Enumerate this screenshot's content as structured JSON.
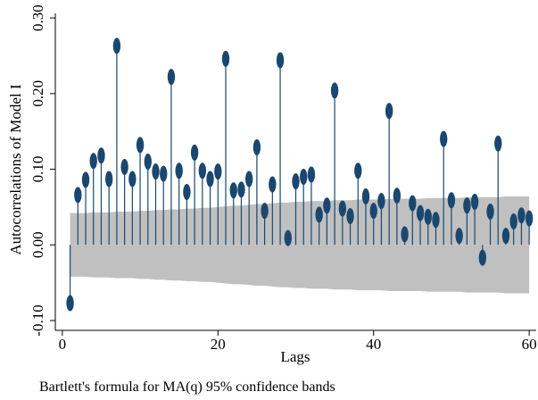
{
  "chart_data": {
    "type": "correlogram",
    "x_label": "Lags",
    "y_label": "Autocorrelations of Model I",
    "note": "Bartlett's formula for MA(q) 95% confidence bands",
    "x": [
      1,
      2,
      3,
      4,
      5,
      6,
      7,
      8,
      9,
      10,
      11,
      12,
      13,
      14,
      15,
      16,
      17,
      18,
      19,
      20,
      21,
      22,
      23,
      24,
      25,
      26,
      27,
      28,
      29,
      30,
      31,
      32,
      33,
      34,
      35,
      36,
      37,
      38,
      39,
      40,
      41,
      42,
      43,
      44,
      45,
      46,
      47,
      48,
      49,
      50,
      51,
      52,
      53,
      54,
      55,
      56,
      57,
      58,
      59,
      60
    ],
    "values": [
      -0.077,
      0.066,
      0.086,
      0.111,
      0.118,
      0.087,
      0.263,
      0.103,
      0.087,
      0.132,
      0.11,
      0.097,
      0.094,
      0.222,
      0.098,
      0.07,
      0.122,
      0.098,
      0.087,
      0.097,
      0.246,
      0.072,
      0.073,
      0.087,
      0.129,
      0.045,
      0.08,
      0.244,
      0.009,
      0.084,
      0.09,
      0.093,
      0.04,
      0.052,
      0.204,
      0.048,
      0.038,
      0.098,
      0.064,
      0.045,
      0.058,
      0.177,
      0.065,
      0.014,
      0.055,
      0.042,
      0.037,
      0.033,
      0.14,
      0.059,
      0.012,
      0.052,
      0.057,
      -0.017,
      0.044,
      0.134,
      0.012,
      0.031,
      0.039,
      0.035
    ],
    "band": [
      0.042,
      0.042,
      0.042,
      0.043,
      0.043,
      0.043,
      0.044,
      0.044,
      0.044,
      0.045,
      0.045,
      0.046,
      0.046,
      0.047,
      0.047,
      0.048,
      0.048,
      0.049,
      0.049,
      0.05,
      0.051,
      0.052,
      0.052,
      0.053,
      0.054,
      0.054,
      0.055,
      0.056,
      0.056,
      0.057,
      0.057,
      0.058,
      0.058,
      0.058,
      0.059,
      0.059,
      0.059,
      0.06,
      0.06,
      0.06,
      0.06,
      0.061,
      0.061,
      0.061,
      0.061,
      0.061,
      0.062,
      0.062,
      0.062,
      0.062,
      0.062,
      0.063,
      0.063,
      0.063,
      0.063,
      0.063,
      0.064,
      0.064,
      0.064,
      0.064
    ],
    "color": "#1a476f",
    "band_color": "#c0c0c0",
    "xlim": [
      -0.9,
      60.9
    ],
    "ylim": [
      -0.113,
      0.306
    ],
    "xticks": [
      0,
      20,
      40,
      60
    ],
    "yticks": [
      {
        "value": -0.1,
        "label": "-0.10"
      },
      {
        "value": 0,
        "label": "0.00"
      },
      {
        "value": 0.1,
        "label": "0.10"
      },
      {
        "value": 0.2,
        "label": "0.20"
      },
      {
        "value": 0.3,
        "label": "0.30"
      }
    ]
  }
}
